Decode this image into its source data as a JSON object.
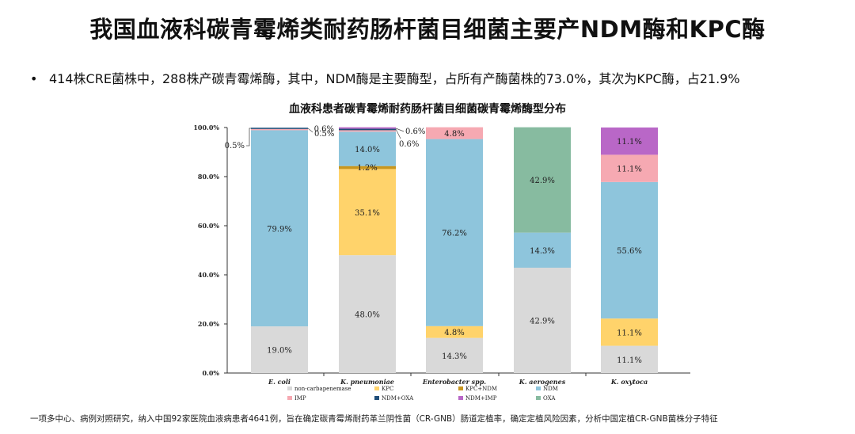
{
  "title": "我国血液科碳青霉烯类耐药肠杆菌目细菌主要产NDM酶和KPC酶",
  "bullet": "414株CRE菌株中，288株产碳青霉烯酶，其中，NDM酶是主要酶型，占所有产酶菌株的73.0%，其次为KPC酶，占21.9%",
  "footnote": "一项多中心、病例对照研究，纳入中国92家医院血液病患者4641例，旨在确定碳青霉烯耐药革兰阴性菌（CR-GNB）肠道定植率，确定定植风险因素，分析中国定植CR-GNB菌株分子特征",
  "colors": {
    "non-carbapenemase": "#d9d9d9",
    "KPC": "#ffd36b",
    "KPC+NDM": "#c8961e",
    "NDM": "#8ec5dc",
    "IMP": "#f6a9b2",
    "NDM+OXA": "#1f4e79",
    "NDM+IMP": "#b967c7",
    "OXA": "#87bba0"
  },
  "chart_data": {
    "type": "bar",
    "stacked": true,
    "title": "血液科患者碳青霉烯耐药肠杆菌目细菌碳青霉烯酶型分布",
    "categories": [
      "E. coli",
      "K. pneumoniae",
      "Enterobacter spp.",
      "K. aerogenes",
      "K. oxytoca"
    ],
    "ylim": [
      0,
      100
    ],
    "yticks": [
      "0.0%",
      "20.0%",
      "40.0%",
      "60.0%",
      "80.0%",
      "100.0%"
    ],
    "legend": [
      "non-carbapenemase",
      "KPC",
      "KPC+NDM",
      "NDM",
      "IMP",
      "NDM+OXA",
      "NDM+IMP",
      "OXA"
    ],
    "bars": [
      {
        "category": "E. coli",
        "segments": [
          {
            "type": "non-carbapenemase",
            "value": 19.0,
            "label": "19.0%"
          },
          {
            "type": "NDM",
            "value": 79.9,
            "label": "79.9%"
          },
          {
            "type": "IMP",
            "value": 0.5,
            "label": "0.5%"
          },
          {
            "type": "NDM+OXA",
            "value": 0.5,
            "label": "0.5%"
          }
        ]
      },
      {
        "category": "K. pneumoniae",
        "segments": [
          {
            "type": "non-carbapenemase",
            "value": 48.0,
            "label": "48.0%"
          },
          {
            "type": "KPC",
            "value": 35.1,
            "label": "35.1%"
          },
          {
            "type": "KPC+NDM",
            "value": 1.2,
            "label": "1.2%"
          },
          {
            "type": "NDM",
            "value": 14.0,
            "label": "14.0%"
          },
          {
            "type": "IMP",
            "value": 0.6,
            "label": "0.6%"
          },
          {
            "type": "NDM+OXA",
            "value": 0.6,
            "label": "0.6%"
          },
          {
            "type": "NDM+IMP",
            "value": 0.6,
            "label": "0.6%"
          }
        ]
      },
      {
        "category": "Enterobacter spp.",
        "segments": [
          {
            "type": "non-carbapenemase",
            "value": 14.3,
            "label": "14.3%"
          },
          {
            "type": "KPC",
            "value": 4.8,
            "label": "4.8%"
          },
          {
            "type": "NDM",
            "value": 76.2,
            "label": "76.2%"
          },
          {
            "type": "IMP",
            "value": 4.8,
            "label": "4.8%"
          }
        ]
      },
      {
        "category": "K. aerogenes",
        "segments": [
          {
            "type": "non-carbapenemase",
            "value": 42.9,
            "label": "42.9%"
          },
          {
            "type": "NDM",
            "value": 14.3,
            "label": "14.3%"
          },
          {
            "type": "OXA",
            "value": 42.9,
            "label": "42.9%"
          }
        ]
      },
      {
        "category": "K. oxytoca",
        "segments": [
          {
            "type": "non-carbapenemase",
            "value": 11.1,
            "label": "11.1%"
          },
          {
            "type": "KPC",
            "value": 11.1,
            "label": "11.1%"
          },
          {
            "type": "NDM",
            "value": 55.6,
            "label": "55.6%"
          },
          {
            "type": "IMP",
            "value": 11.1,
            "label": "11.1%"
          },
          {
            "type": "NDM+IMP",
            "value": 11.1,
            "label": "11.1%"
          }
        ]
      }
    ]
  }
}
